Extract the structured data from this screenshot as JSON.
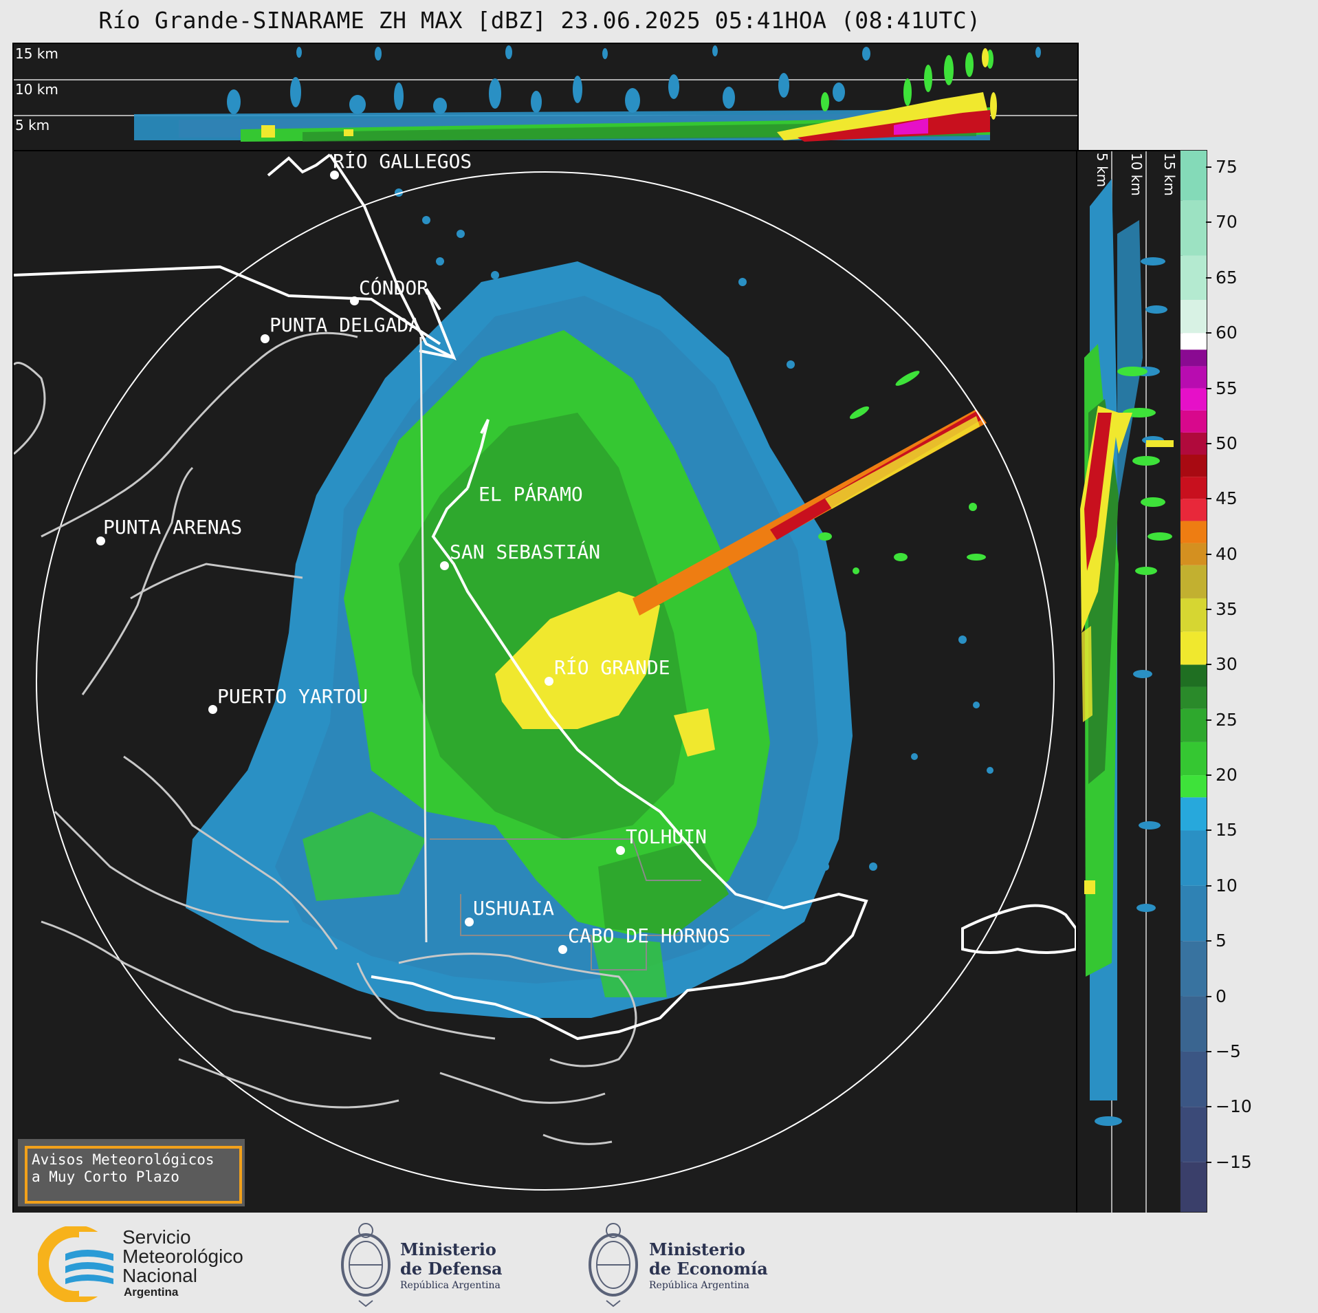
{
  "title": "Río Grande-SINARAME ZH MAX [dBZ] 23.06.2025 05:41HOA (08:41UTC)",
  "top_panel": {
    "height_labels": [
      "15 km",
      "10 km",
      "5 km"
    ]
  },
  "side_panel": {
    "height_labels": [
      "5 km",
      "10 km",
      "15 km"
    ]
  },
  "colorbar": {
    "ticks": [
      "75",
      "70",
      "65",
      "60",
      "55",
      "50",
      "45",
      "40",
      "35",
      "30",
      "25",
      "20",
      "15",
      "10",
      "5",
      "0",
      "−5",
      "−10",
      "−15"
    ],
    "tick_values": [
      75,
      70,
      65,
      60,
      55,
      50,
      45,
      40,
      35,
      30,
      25,
      20,
      15,
      10,
      5,
      0,
      -5,
      -10,
      -15
    ],
    "range": [
      -19.5,
      76.5
    ],
    "bands": [
      {
        "from": -19.5,
        "to": -15,
        "color": "#3a3f6a"
      },
      {
        "from": -15,
        "to": -10,
        "color": "#3b4a78"
      },
      {
        "from": -10,
        "to": -5,
        "color": "#3b5684"
      },
      {
        "from": -5,
        "to": 0,
        "color": "#3a6590"
      },
      {
        "from": 0,
        "to": 5,
        "color": "#3873a0"
      },
      {
        "from": 5,
        "to": 10,
        "color": "#2f82b4"
      },
      {
        "from": 10,
        "to": 15,
        "color": "#2a90c4"
      },
      {
        "from": 15,
        "to": 18,
        "color": "#27a8dc"
      },
      {
        "from": 18,
        "to": 20,
        "color": "#3ee23a"
      },
      {
        "from": 20,
        "to": 23,
        "color": "#35c732"
      },
      {
        "from": 23,
        "to": 26,
        "color": "#2ea82d"
      },
      {
        "from": 26,
        "to": 28,
        "color": "#2a8a2a"
      },
      {
        "from": 28,
        "to": 30,
        "color": "#1f6f22"
      },
      {
        "from": 30,
        "to": 33,
        "color": "#f0e82e"
      },
      {
        "from": 33,
        "to": 36,
        "color": "#d6d632"
      },
      {
        "from": 36,
        "to": 39,
        "color": "#c2b030"
      },
      {
        "from": 39,
        "to": 41,
        "color": "#d49020"
      },
      {
        "from": 41,
        "to": 43,
        "color": "#ee7d12"
      },
      {
        "from": 43,
        "to": 45,
        "color": "#e8283a"
      },
      {
        "from": 45,
        "to": 47,
        "color": "#c8101e"
      },
      {
        "from": 47,
        "to": 49,
        "color": "#a80a12"
      },
      {
        "from": 49,
        "to": 51,
        "color": "#b00a3c"
      },
      {
        "from": 51,
        "to": 53,
        "color": "#d8088c"
      },
      {
        "from": 53,
        "to": 55,
        "color": "#e610c8"
      },
      {
        "from": 55,
        "to": 57,
        "color": "#b80cb0"
      },
      {
        "from": 57,
        "to": 58.5,
        "color": "#8a0a92"
      },
      {
        "from": 58.5,
        "to": 60,
        "color": "#ffffff"
      },
      {
        "from": 60,
        "to": 63,
        "color": "#d8f2e4"
      },
      {
        "from": 63,
        "to": 67,
        "color": "#b4ead0"
      },
      {
        "from": 67,
        "to": 72,
        "color": "#9ce2c2"
      },
      {
        "from": 72,
        "to": 76.5,
        "color": "#84dab8"
      }
    ]
  },
  "cities": [
    {
      "name": "RÍO GALLEGOS"
    },
    {
      "name": "CÓNDOR"
    },
    {
      "name": "PUNTA DELGADA"
    },
    {
      "name": "EL PÁRAMO"
    },
    {
      "name": "PUNTA ARENAS"
    },
    {
      "name": "SAN SEBASTIÁN"
    },
    {
      "name": "RÍO GRANDE"
    },
    {
      "name": "PUERTO YARTOU"
    },
    {
      "name": "TOLHUIN"
    },
    {
      "name": "USHUAIA"
    },
    {
      "name": "CABO DE HORNOS"
    }
  ],
  "warning_box": {
    "line1": "Avisos Meteorológicos",
    "line2": "a Muy Corto Plazo"
  },
  "footer": {
    "smn": {
      "line1": "Servicio",
      "line2": "Meteorológico",
      "line3": "Nacional",
      "line4": "Argentina"
    },
    "defensa": {
      "line1": "Ministerio",
      "line2": "de Defensa",
      "line3": "República Argentina"
    },
    "economia": {
      "line1": "Ministerio",
      "line2": "de Economía",
      "line3": "República Argentina"
    }
  },
  "colors": {
    "panel_bg": "#1c1c1c",
    "page_bg": "#e8e8e8",
    "accent_orange": "#f2a11b",
    "smn_blue": "#2a9bd6",
    "smn_yellow": "#f7b21b"
  }
}
